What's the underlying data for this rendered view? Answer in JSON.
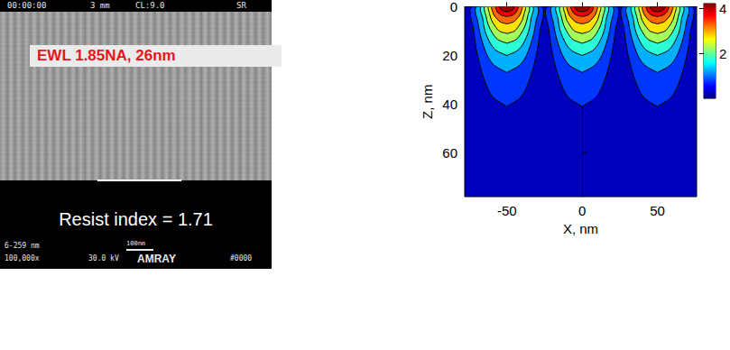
{
  "sem_image": {
    "header": [
      "00:00:00",
      "3 mm",
      "CL:9.0",
      "SR"
    ],
    "title": "EWL 1.85NA, 26nm",
    "caption": "Resist index = 1.71",
    "footer": [
      "6-259 nm",
      "100,000x",
      "30.0 kV",
      "100nm",
      "AMRAY",
      "#0000"
    ]
  },
  "chart_data": {
    "type": "contour",
    "xlabel": "X, nm",
    "ylabel": "Z, nm",
    "xlim": [
      -78,
      76
    ],
    "xticks": [
      -50,
      0,
      50
    ],
    "ylim": [
      0,
      78
    ],
    "yticks": [
      0,
      20,
      40,
      60
    ],
    "lobe_centers": [
      -50,
      0,
      50
    ],
    "contours": [
      {
        "level": 0.5,
        "z": [
          0,
          10,
          20,
          30,
          37,
          41
        ],
        "half_width": [
          23,
          22,
          19.5,
          15,
          9.5,
          0
        ]
      },
      {
        "level": 1.0,
        "z": [
          0,
          7,
          13,
          20,
          24,
          27
        ],
        "half_width": [
          20,
          19,
          17,
          13,
          8.5,
          0
        ]
      },
      {
        "level": 1.5,
        "z": [
          0,
          5,
          10,
          15,
          18,
          20
        ],
        "half_width": [
          17,
          16,
          14.5,
          11,
          7,
          0
        ]
      },
      {
        "level": 2.0,
        "z": [
          0,
          4,
          7.5,
          11,
          13.5,
          15
        ],
        "half_width": [
          14.5,
          13.8,
          12.3,
          9.4,
          6,
          0
        ]
      },
      {
        "level": 2.5,
        "z": [
          0,
          3,
          5.5,
          8,
          10,
          11
        ],
        "half_width": [
          12,
          11.4,
          10.2,
          7.8,
          5,
          0
        ]
      },
      {
        "level": 3.0,
        "z": [
          0,
          2,
          3.5,
          5,
          6.3,
          7
        ],
        "half_width": [
          10,
          9.5,
          8.5,
          6.5,
          4.2,
          0
        ]
      },
      {
        "level": 3.5,
        "z": [
          0,
          1,
          2,
          3,
          3.6,
          4
        ],
        "half_width": [
          7.5,
          7.1,
          6.4,
          4.9,
          3.2,
          0
        ]
      },
      {
        "level": 4.0,
        "z": [
          0,
          0.5,
          1,
          1.5,
          1.8,
          2
        ],
        "half_width": [
          5,
          4.7,
          4.2,
          3.2,
          2.1,
          0
        ]
      }
    ],
    "colorbar": {
      "range": [
        0,
        4.2
      ],
      "ticks": [
        2,
        4
      ]
    }
  }
}
